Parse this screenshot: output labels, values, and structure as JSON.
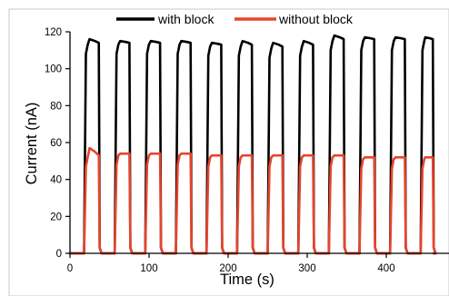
{
  "chart_data": {
    "type": "line",
    "title": "",
    "xlabel": "Time (s)",
    "ylabel": "Current (nA)",
    "xlim": [
      0,
      460
    ],
    "ylim": [
      0,
      120
    ],
    "x_ticks": [
      0,
      100,
      200,
      300,
      400
    ],
    "y_ticks": [
      0,
      20,
      40,
      60,
      80,
      100,
      120
    ],
    "grid": false,
    "legend_position": "top",
    "pulse_period_s": 38.7,
    "pulse_width_s": 19.8,
    "series": [
      {
        "name": "with block",
        "color": "#000000",
        "baseline": 0,
        "pulses": [
          {
            "start": 17.8,
            "end": 37.6,
            "level": 114,
            "peak": 116
          },
          {
            "start": 56.5,
            "end": 76.3,
            "level": 114,
            "peak": 115
          },
          {
            "start": 95.2,
            "end": 115.0,
            "level": 114,
            "peak": 115
          },
          {
            "start": 133.9,
            "end": 153.7,
            "level": 114,
            "peak": 115
          },
          {
            "start": 172.6,
            "end": 192.4,
            "level": 113,
            "peak": 114
          },
          {
            "start": 211.3,
            "end": 231.1,
            "level": 113,
            "peak": 115
          },
          {
            "start": 250.0,
            "end": 269.8,
            "level": 112,
            "peak": 114
          },
          {
            "start": 288.7,
            "end": 308.5,
            "level": 113,
            "peak": 115
          },
          {
            "start": 327.4,
            "end": 347.2,
            "level": 116,
            "peak": 118
          },
          {
            "start": 366.1,
            "end": 385.9,
            "level": 116,
            "peak": 117
          },
          {
            "start": 404.8,
            "end": 424.6,
            "level": 116,
            "peak": 117
          },
          {
            "start": 443.5,
            "end": 460.0,
            "level": 116,
            "peak": 117
          }
        ]
      },
      {
        "name": "without block",
        "color": "#e8442d",
        "baseline": 0,
        "pulses": [
          {
            "start": 17.8,
            "end": 37.6,
            "level": 53,
            "peak": 57
          },
          {
            "start": 56.5,
            "end": 76.3,
            "level": 54,
            "peak": 54
          },
          {
            "start": 95.2,
            "end": 115.0,
            "level": 54,
            "peak": 54
          },
          {
            "start": 133.9,
            "end": 153.7,
            "level": 54,
            "peak": 54
          },
          {
            "start": 172.6,
            "end": 192.4,
            "level": 53,
            "peak": 53
          },
          {
            "start": 211.3,
            "end": 231.1,
            "level": 53,
            "peak": 53
          },
          {
            "start": 250.0,
            "end": 269.8,
            "level": 53,
            "peak": 53
          },
          {
            "start": 288.7,
            "end": 308.5,
            "level": 53,
            "peak": 53
          },
          {
            "start": 327.4,
            "end": 347.2,
            "level": 53,
            "peak": 53
          },
          {
            "start": 366.1,
            "end": 385.9,
            "level": 52,
            "peak": 52
          },
          {
            "start": 404.8,
            "end": 424.6,
            "level": 52,
            "peak": 52
          },
          {
            "start": 443.5,
            "end": 460.0,
            "level": 52,
            "peak": 52
          }
        ]
      }
    ]
  }
}
